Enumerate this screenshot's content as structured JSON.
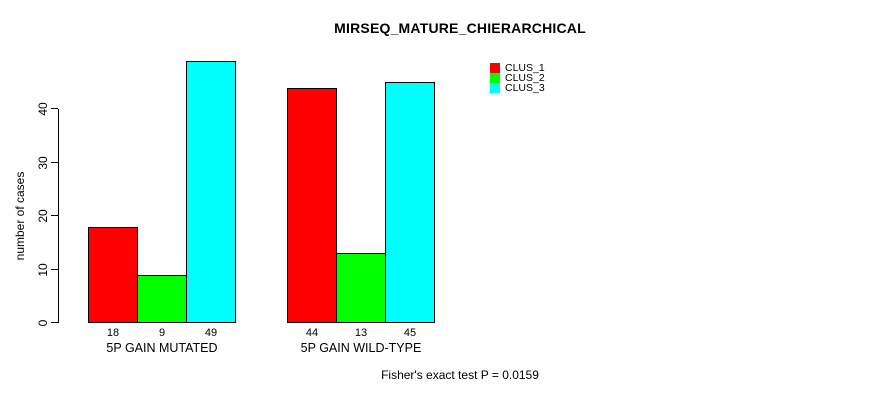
{
  "chart_data": {
    "type": "bar",
    "title": "MIRSEQ_MATURE_CHIERARCHICAL",
    "ylabel": "number of cases",
    "xlabel": "",
    "categories": [
      "5P GAIN MUTATED",
      "5P GAIN WILD-TYPE"
    ],
    "series": [
      {
        "name": "CLUS_1",
        "color": "#FF0000",
        "values": [
          18,
          44
        ]
      },
      {
        "name": "CLUS_2",
        "color": "#00FF00",
        "values": [
          9,
          13
        ]
      },
      {
        "name": "CLUS_3",
        "color": "#00FFFF",
        "values": [
          49,
          45
        ]
      }
    ],
    "yticks": [
      0,
      10,
      20,
      30,
      40
    ],
    "ylim": [
      0,
      40
    ],
    "grid": false,
    "show_bar_values": true,
    "legend_position": "top-right-inside",
    "annotation": "Fisher's exact test P = 0.0159",
    "bar_border_color": "#000000",
    "text_color": "#000000",
    "background_color": "#FFFFFF"
  }
}
